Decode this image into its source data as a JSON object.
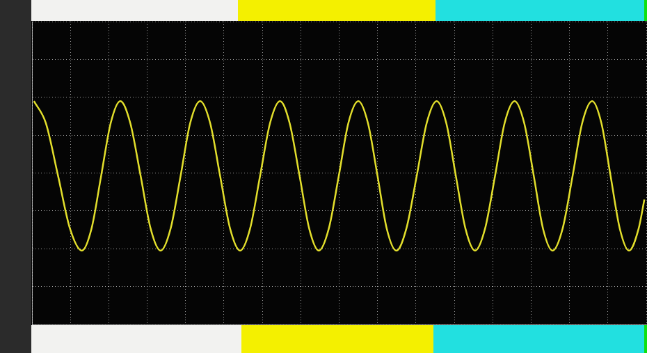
{
  "chart_data": {
    "type": "line",
    "x": [
      0.05,
      0.36,
      0.68,
      0.99,
      1.3,
      1.55,
      1.8,
      2.05,
      2.3,
      2.56,
      2.83,
      3.09,
      3.35,
      3.61,
      3.87,
      4.12,
      4.38,
      4.64,
      4.9,
      5.16,
      5.42,
      5.68,
      5.94,
      6.2,
      6.46,
      6.71,
      6.97,
      7.22,
      7.47,
      7.73,
      7.99,
      8.24,
      8.5,
      8.75,
      9.0,
      9.24,
      9.49,
      9.75,
      10.02,
      10.28,
      10.54,
      10.79,
      11.04,
      11.29,
      11.54,
      11.8,
      12.06,
      12.31,
      12.57,
      12.82,
      13.07,
      13.31,
      13.56,
      13.82,
      14.08,
      14.33,
      14.59,
      14.83,
      15.07,
      15.31,
      15.55,
      15.8,
      15.95
    ],
    "values": [
      1.9,
      1.32,
      -0.08,
      -1.47,
      -2.05,
      -1.47,
      -0.08,
      1.32,
      1.9,
      1.32,
      -0.08,
      -1.47,
      -2.05,
      -1.47,
      -0.08,
      1.32,
      1.9,
      1.32,
      -0.08,
      -1.47,
      -2.05,
      -1.47,
      -0.08,
      1.32,
      1.9,
      1.32,
      -0.08,
      -1.47,
      -2.05,
      -1.47,
      -0.08,
      1.32,
      1.9,
      1.32,
      -0.08,
      -1.47,
      -2.05,
      -1.47,
      -0.08,
      1.32,
      1.9,
      1.32,
      -0.08,
      -1.47,
      -2.05,
      -1.47,
      -0.08,
      1.32,
      1.9,
      1.32,
      -0.08,
      -1.47,
      -2.05,
      -1.47,
      -0.08,
      1.32,
      1.9,
      1.32,
      -0.08,
      -1.47,
      -2.05,
      -1.47,
      -0.7
    ],
    "color": "#e3df2c",
    "xlim": [
      0,
      16
    ],
    "xticks": [
      0,
      1,
      2,
      3,
      4,
      5,
      6,
      7,
      8,
      9,
      10,
      11,
      12,
      13,
      14,
      15,
      16
    ],
    "ylim": [
      -4,
      4
    ],
    "yticks": [
      -4,
      -3,
      -2,
      -1,
      0,
      1,
      2,
      3,
      4
    ],
    "grid": true,
    "tick_labels": false
  }
}
